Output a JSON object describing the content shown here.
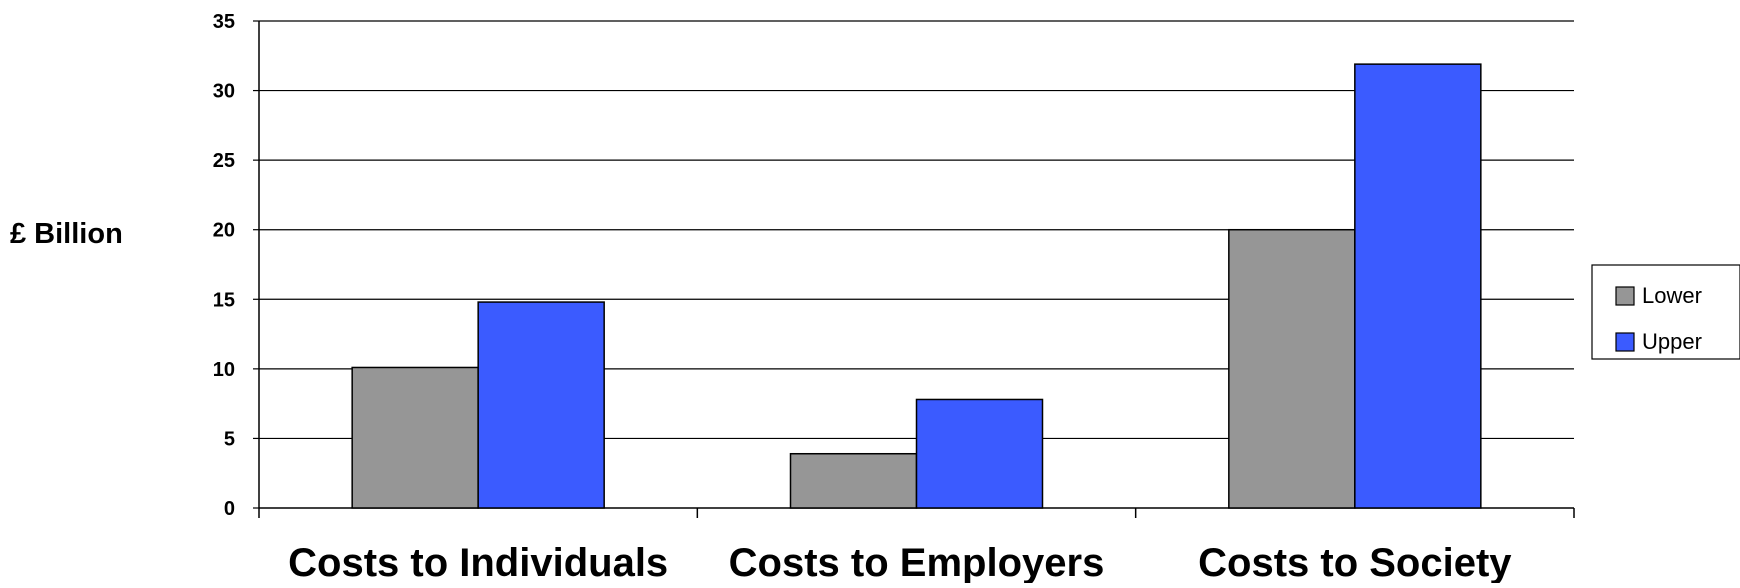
{
  "chart_data": {
    "type": "bar",
    "title": "",
    "xlabel": "",
    "ylabel": "£ Billion",
    "categories": [
      "Costs to Individuals",
      "Costs to Employers",
      "Costs to Society"
    ],
    "series": [
      {
        "name": "Lower",
        "values": [
          10.1,
          3.9,
          20.0
        ],
        "color": "#969696"
      },
      {
        "name": "Upper",
        "values": [
          14.8,
          7.8,
          31.9
        ],
        "color": "#3b5bff"
      }
    ],
    "ylim": [
      0,
      35
    ],
    "yticks": [
      0,
      5,
      10,
      15,
      20,
      25,
      30,
      35
    ],
    "grid": true,
    "legend_position": "right"
  }
}
